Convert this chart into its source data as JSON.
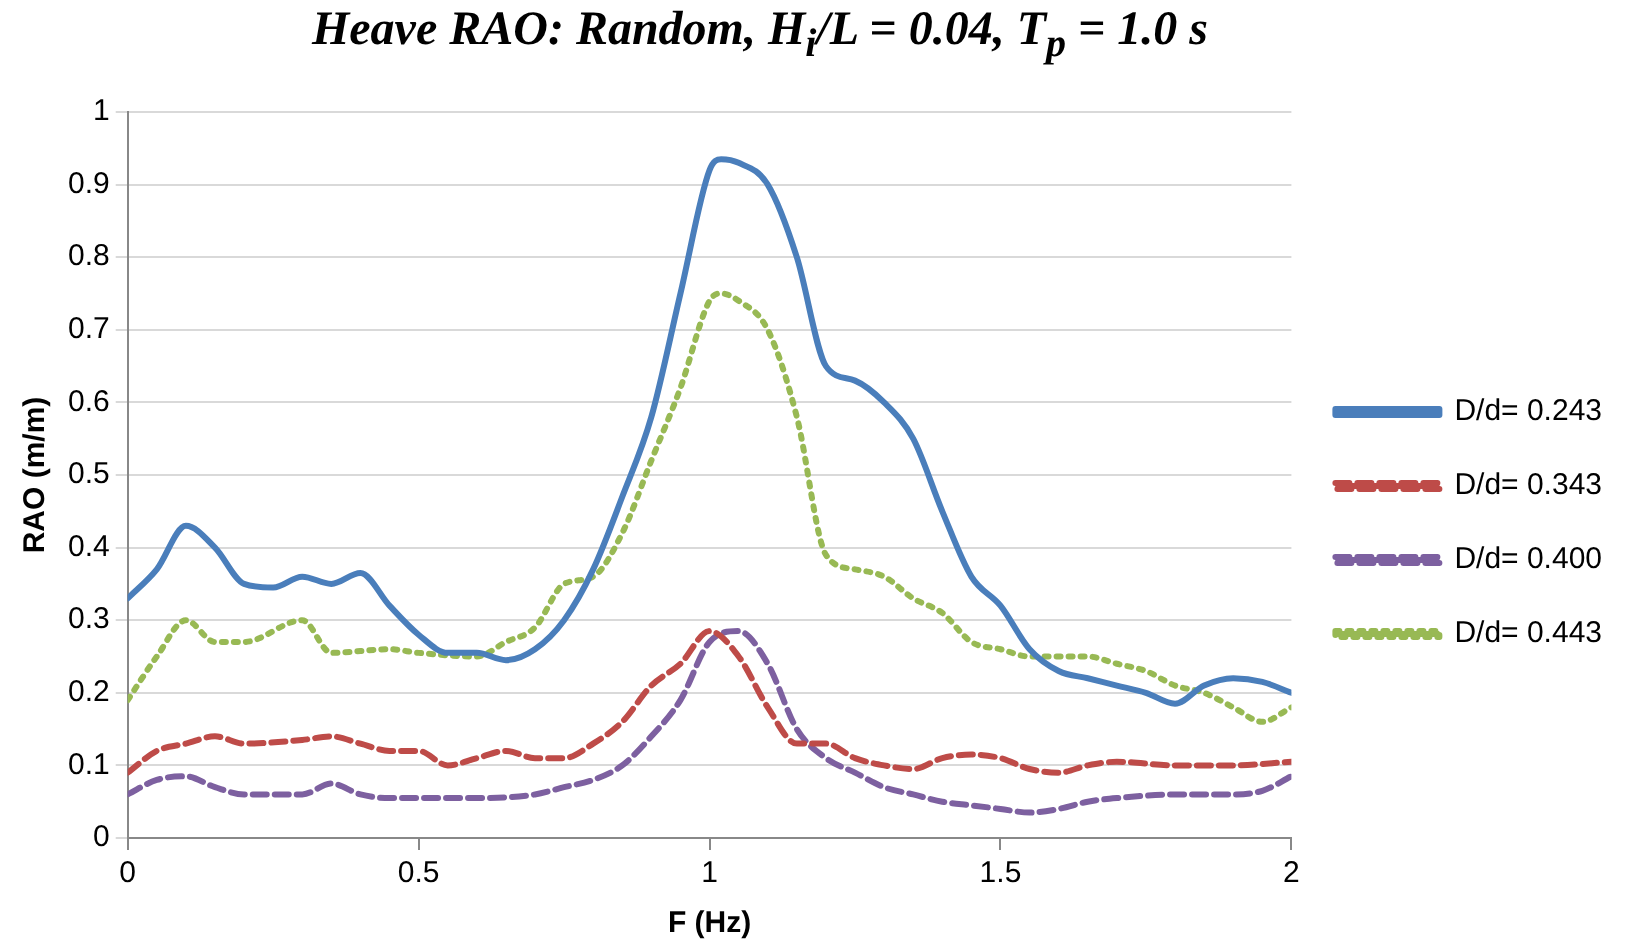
{
  "chart_data": {
    "type": "line",
    "title": "Heave RAO: Random, H$_{i}$/L = 0.04, T$_{p}$ = 1.0 s",
    "xlabel": "F (Hz)",
    "ylabel": "RAO (m/m)",
    "xlim": [
      0,
      2
    ],
    "xticks": [
      0,
      0.5,
      1,
      1.5,
      2
    ],
    "ylim": [
      0,
      1
    ],
    "yticks": [
      0,
      0.1,
      0.2,
      0.3,
      0.4,
      0.5,
      0.6,
      0.7,
      0.8,
      0.9,
      1
    ],
    "grid": "y",
    "legend": "right",
    "marker": "none",
    "series": [
      {
        "name": "D/d= 0.243",
        "color": "#4a7ebb",
        "line_style": "solid",
        "x": [
          0,
          0.05,
          0.1,
          0.15,
          0.2,
          0.25,
          0.3,
          0.35,
          0.4,
          0.45,
          0.5,
          0.55,
          0.6,
          0.65,
          0.7,
          0.75,
          0.8,
          0.85,
          0.9,
          0.95,
          1.0,
          1.02,
          1.05,
          1.1,
          1.15,
          1.2,
          1.25,
          1.3,
          1.35,
          1.4,
          1.45,
          1.5,
          1.55,
          1.6,
          1.65,
          1.7,
          1.75,
          1.8,
          1.85,
          1.9,
          1.95,
          2.0
        ],
        "values": [
          0.33,
          0.37,
          0.43,
          0.4,
          0.35,
          0.345,
          0.36,
          0.35,
          0.365,
          0.32,
          0.28,
          0.255,
          0.255,
          0.245,
          0.26,
          0.3,
          0.37,
          0.47,
          0.58,
          0.75,
          0.92,
          0.935,
          0.93,
          0.9,
          0.8,
          0.65,
          0.63,
          0.6,
          0.55,
          0.45,
          0.36,
          0.32,
          0.26,
          0.23,
          0.22,
          0.21,
          0.2,
          0.185,
          0.21,
          0.22,
          0.215,
          0.2
        ]
      },
      {
        "name": "D/d= 0.343",
        "color": "#be4b48",
        "line_style": "dashed",
        "x": [
          0,
          0.05,
          0.1,
          0.15,
          0.2,
          0.3,
          0.35,
          0.4,
          0.45,
          0.5,
          0.55,
          0.6,
          0.65,
          0.7,
          0.75,
          0.8,
          0.85,
          0.9,
          0.95,
          1.0,
          1.05,
          1.1,
          1.15,
          1.2,
          1.25,
          1.3,
          1.35,
          1.4,
          1.45,
          1.5,
          1.55,
          1.6,
          1.65,
          1.7,
          1.8,
          1.9,
          2.0
        ],
        "values": [
          0.09,
          0.12,
          0.13,
          0.14,
          0.13,
          0.135,
          0.14,
          0.13,
          0.12,
          0.12,
          0.1,
          0.11,
          0.12,
          0.11,
          0.11,
          0.13,
          0.16,
          0.21,
          0.24,
          0.285,
          0.25,
          0.18,
          0.13,
          0.13,
          0.11,
          0.1,
          0.095,
          0.11,
          0.115,
          0.11,
          0.095,
          0.09,
          0.1,
          0.105,
          0.1,
          0.1,
          0.105
        ]
      },
      {
        "name": "D/d= 0.400",
        "color": "#7d60a0",
        "line_style": "dashed",
        "x": [
          0,
          0.05,
          0.1,
          0.15,
          0.2,
          0.3,
          0.35,
          0.4,
          0.45,
          0.5,
          0.6,
          0.7,
          0.75,
          0.8,
          0.85,
          0.9,
          0.95,
          1.0,
          1.05,
          1.1,
          1.15,
          1.2,
          1.25,
          1.3,
          1.35,
          1.4,
          1.45,
          1.5,
          1.55,
          1.6,
          1.65,
          1.7,
          1.8,
          1.9,
          1.95,
          2.0
        ],
        "values": [
          0.06,
          0.08,
          0.085,
          0.07,
          0.06,
          0.06,
          0.075,
          0.06,
          0.055,
          0.055,
          0.055,
          0.06,
          0.07,
          0.08,
          0.1,
          0.14,
          0.19,
          0.27,
          0.285,
          0.24,
          0.15,
          0.11,
          0.09,
          0.07,
          0.06,
          0.05,
          0.045,
          0.04,
          0.035,
          0.04,
          0.05,
          0.055,
          0.06,
          0.06,
          0.065,
          0.085
        ]
      },
      {
        "name": "D/d= 0.443",
        "color": "#98b954",
        "line_style": "dotted",
        "x": [
          0,
          0.05,
          0.1,
          0.15,
          0.2,
          0.3,
          0.35,
          0.45,
          0.5,
          0.6,
          0.65,
          0.7,
          0.75,
          0.8,
          0.85,
          0.9,
          0.95,
          1.0,
          1.02,
          1.05,
          1.1,
          1.15,
          1.2,
          1.25,
          1.3,
          1.35,
          1.4,
          1.45,
          1.5,
          1.55,
          1.6,
          1.65,
          1.7,
          1.75,
          1.8,
          1.85,
          1.9,
          1.95,
          2.0
        ],
        "values": [
          0.19,
          0.25,
          0.3,
          0.27,
          0.27,
          0.3,
          0.255,
          0.26,
          0.255,
          0.25,
          0.27,
          0.29,
          0.35,
          0.36,
          0.42,
          0.52,
          0.62,
          0.74,
          0.75,
          0.74,
          0.7,
          0.58,
          0.39,
          0.37,
          0.36,
          0.33,
          0.31,
          0.27,
          0.26,
          0.25,
          0.25,
          0.25,
          0.24,
          0.23,
          0.21,
          0.2,
          0.18,
          0.16,
          0.18
        ]
      }
    ]
  }
}
